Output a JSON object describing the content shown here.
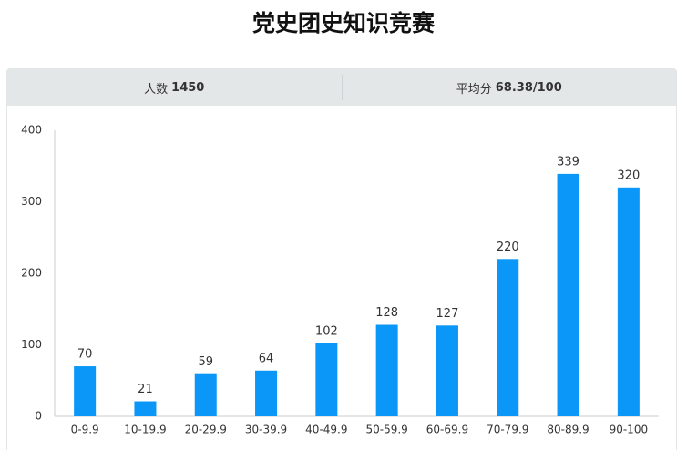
{
  "title": "党史团史知识竞赛",
  "stats": [
    {
      "label": "人数",
      "value": 1450
    },
    {
      "label": "平均分",
      "value": "68.38/100"
    }
  ],
  "chart_data": {
    "type": "bar",
    "categories": [
      "0-9.9",
      "10-19.9",
      "20-29.9",
      "30-39.9",
      "40-49.9",
      "50-59.9",
      "60-69.9",
      "70-79.9",
      "80-89.9",
      "90-100"
    ],
    "values": [
      70,
      21,
      59,
      64,
      102,
      128,
      127,
      220,
      339,
      320
    ],
    "color": "#0a97f7",
    "ylim": [
      0,
      400
    ],
    "yticks": [
      0,
      100,
      200,
      300,
      400
    ]
  }
}
